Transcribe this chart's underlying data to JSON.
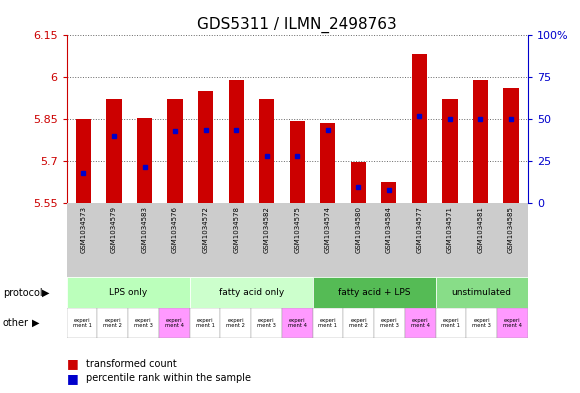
{
  "title": "GDS5311 / ILMN_2498763",
  "samples": [
    "GSM1034573",
    "GSM1034579",
    "GSM1034583",
    "GSM1034576",
    "GSM1034572",
    "GSM1034578",
    "GSM1034582",
    "GSM1034575",
    "GSM1034574",
    "GSM1034580",
    "GSM1034584",
    "GSM1034577",
    "GSM1034571",
    "GSM1034581",
    "GSM1034585"
  ],
  "red_values": [
    5.85,
    5.924,
    5.855,
    5.924,
    5.952,
    5.99,
    5.924,
    5.843,
    5.838,
    5.698,
    5.627,
    6.083,
    5.924,
    5.99,
    5.963
  ],
  "blue_pct": [
    18,
    40,
    22,
    43,
    44,
    44,
    28,
    28,
    44,
    10,
    8,
    52,
    50,
    50,
    50
  ],
  "ylim_left": [
    5.55,
    6.15
  ],
  "ylim_right": [
    0,
    100
  ],
  "yticks_left": [
    5.55,
    5.7,
    5.85,
    6.0,
    6.15
  ],
  "ytick_labels_left": [
    "5.55",
    "5.7",
    "5.85",
    "6",
    "6.15"
  ],
  "yticks_right": [
    0,
    25,
    50,
    75,
    100
  ],
  "ytick_labels_right": [
    "0",
    "25",
    "50",
    "75",
    "100%"
  ],
  "bar_color": "#CC0000",
  "dot_color": "#0000CC",
  "base_value": 5.55,
  "protocol_groups": [
    {
      "label": "LPS only",
      "start": 0,
      "end": 4,
      "color": "#BBFFBB"
    },
    {
      "label": "fatty acid only",
      "start": 4,
      "end": 8,
      "color": "#CCFFCC"
    },
    {
      "label": "fatty acid + LPS",
      "start": 8,
      "end": 12,
      "color": "#55BB55"
    },
    {
      "label": "unstimulated",
      "start": 12,
      "end": 15,
      "color": "#88DD88"
    }
  ],
  "other_labels": [
    "experi\nment 1",
    "experi\nment 2",
    "experi\nment 3",
    "experi\nment 4",
    "experi\nment 1",
    "experi\nment 2",
    "experi\nment 3",
    "experi\nment 4",
    "experi\nment 1",
    "experi\nment 2",
    "experi\nment 3",
    "experi\nment 4",
    "experi\nment 1",
    "experi\nment 3",
    "experi\nment 4"
  ],
  "other_colors": [
    "#FFFFFF",
    "#FFFFFF",
    "#FFFFFF",
    "#FF99FF",
    "#FFFFFF",
    "#FFFFFF",
    "#FFFFFF",
    "#FF99FF",
    "#FFFFFF",
    "#FFFFFF",
    "#FFFFFF",
    "#FF99FF",
    "#FFFFFF",
    "#FFFFFF",
    "#FF99FF"
  ],
  "left_axis_color": "#CC0000",
  "right_axis_color": "#0000CC",
  "legend_red_label": "transformed count",
  "legend_blue_label": "percentile rank within the sample"
}
